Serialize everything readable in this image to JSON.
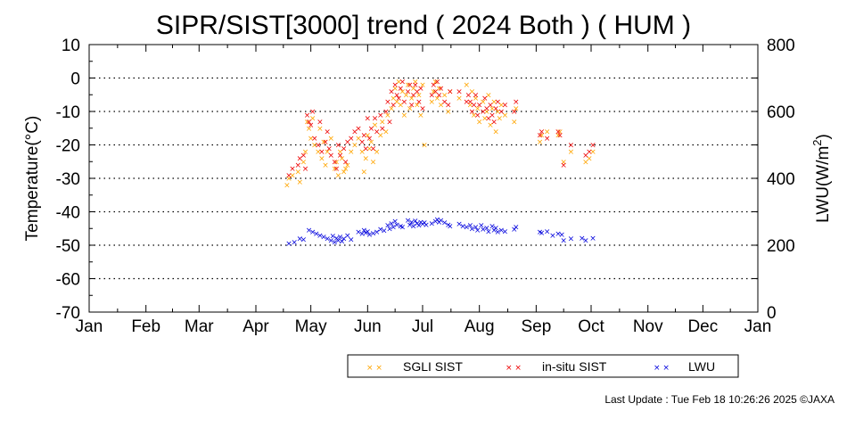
{
  "chart_data": {
    "type": "scatter",
    "title": "SIPR/SIST[3000] trend ( 2024 Both ) ( HUM )",
    "ylabel": "Temperature(°C)",
    "y2label_base": "LWU(W/m",
    "y2label_sup": "2",
    "y2label_end": ")",
    "ylim": [
      -70,
      10
    ],
    "y2lim": [
      0,
      800
    ],
    "xlim": [
      1,
      366
    ],
    "yticks": [
      10,
      0,
      -10,
      -20,
      -30,
      -40,
      -50,
      -60,
      -70
    ],
    "y2ticks": [
      800,
      600,
      400,
      200,
      0
    ],
    "xticks": [
      {
        "label": "Jan",
        "day": 1
      },
      {
        "label": "Feb",
        "day": 32
      },
      {
        "label": "Mar",
        "day": 61
      },
      {
        "label": "Apr",
        "day": 92
      },
      {
        "label": "May",
        "day": 122
      },
      {
        "label": "Jun",
        "day": 153
      },
      {
        "label": "Jul",
        "day": 183
      },
      {
        "label": "Aug",
        "day": 214
      },
      {
        "label": "Sep",
        "day": 245
      },
      {
        "label": "Oct",
        "day": 275
      },
      {
        "label": "Nov",
        "day": 306
      },
      {
        "label": "Dec",
        "day": 336
      },
      {
        "label": "Jan",
        "day": 366
      }
    ],
    "grid": "horizontal-dotted",
    "legend_position": "bottom",
    "series": [
      {
        "name": "SGLI SIST",
        "color": "#ffa500",
        "axis": "left",
        "points": [
          [
            109,
            -32
          ],
          [
            110,
            -30
          ],
          [
            112,
            -29
          ],
          [
            115,
            -28
          ],
          [
            116,
            -31
          ],
          [
            118,
            -25
          ],
          [
            119,
            -22
          ],
          [
            120,
            -13
          ],
          [
            121,
            -15
          ],
          [
            122,
            -18
          ],
          [
            123,
            -12
          ],
          [
            124,
            -20
          ],
          [
            126,
            -22
          ],
          [
            127,
            -15
          ],
          [
            128,
            -24
          ],
          [
            129,
            -19
          ],
          [
            130,
            -26
          ],
          [
            131,
            -22
          ],
          [
            133,
            -18
          ],
          [
            135,
            -27
          ],
          [
            136,
            -25
          ],
          [
            137,
            -29
          ],
          [
            138,
            -22
          ],
          [
            139,
            -24
          ],
          [
            140,
            -28
          ],
          [
            141,
            -27
          ],
          [
            142,
            -26
          ],
          [
            144,
            -22
          ],
          [
            146,
            -20
          ],
          [
            148,
            -18
          ],
          [
            150,
            -22
          ],
          [
            151,
            -28
          ],
          [
            152,
            -24
          ],
          [
            153,
            -17
          ],
          [
            154,
            -21
          ],
          [
            155,
            -19
          ],
          [
            156,
            -25
          ],
          [
            157,
            -14
          ],
          [
            158,
            -22
          ],
          [
            160,
            -17
          ],
          [
            161,
            -13
          ],
          [
            163,
            -16
          ],
          [
            164,
            -11
          ],
          [
            166,
            -9
          ],
          [
            167,
            -6
          ],
          [
            168,
            -3
          ],
          [
            169,
            -7
          ],
          [
            170,
            -1
          ],
          [
            171,
            -8
          ],
          [
            172,
            -4
          ],
          [
            173,
            -11
          ],
          [
            174,
            -5
          ],
          [
            175,
            -2
          ],
          [
            176,
            -9
          ],
          [
            177,
            -6
          ],
          [
            178,
            -3
          ],
          [
            179,
            -1
          ],
          [
            180,
            -8
          ],
          [
            181,
            -5
          ],
          [
            182,
            -11
          ],
          [
            183,
            -2
          ],
          [
            184,
            -20
          ],
          [
            188,
            -7
          ],
          [
            189,
            -4
          ],
          [
            190,
            -1
          ],
          [
            191,
            -6
          ],
          [
            192,
            -3
          ],
          [
            193,
            -8
          ],
          [
            195,
            -5
          ],
          [
            197,
            -10
          ],
          [
            198,
            -4
          ],
          [
            203,
            -6
          ],
          [
            207,
            -2
          ],
          [
            209,
            -8
          ],
          [
            210,
            -4
          ],
          [
            211,
            -11
          ],
          [
            212,
            -6
          ],
          [
            213,
            -9
          ],
          [
            214,
            -13
          ],
          [
            216,
            -7
          ],
          [
            217,
            -12
          ],
          [
            218,
            -10
          ],
          [
            219,
            -5
          ],
          [
            220,
            -14
          ],
          [
            221,
            -9
          ],
          [
            222,
            -7
          ],
          [
            223,
            -16
          ],
          [
            224,
            -10
          ],
          [
            225,
            -12
          ],
          [
            226,
            -8
          ],
          [
            228,
            -11
          ],
          [
            233,
            -13
          ],
          [
            234,
            -9
          ],
          [
            247,
            -19
          ],
          [
            248,
            -17
          ],
          [
            251,
            -16
          ],
          [
            257,
            -17
          ],
          [
            258,
            -16
          ],
          [
            260,
            -25
          ],
          [
            264,
            -22
          ],
          [
            272,
            -25
          ],
          [
            274,
            -24
          ],
          [
            276,
            -22
          ]
        ]
      },
      {
        "name": "in-situ SIST",
        "color": "#ee0000",
        "axis": "left",
        "points": [
          [
            110,
            -29
          ],
          [
            112,
            -27
          ],
          [
            115,
            -26
          ],
          [
            116,
            -24
          ],
          [
            118,
            -23
          ],
          [
            119,
            -27
          ],
          [
            120,
            -11
          ],
          [
            121,
            -13
          ],
          [
            122,
            -14
          ],
          [
            123,
            -10
          ],
          [
            124,
            -18
          ],
          [
            126,
            -20
          ],
          [
            127,
            -13
          ],
          [
            128,
            -22
          ],
          [
            130,
            -19
          ],
          [
            131,
            -16
          ],
          [
            132,
            -21
          ],
          [
            133,
            -23
          ],
          [
            135,
            -25
          ],
          [
            136,
            -27
          ],
          [
            137,
            -20
          ],
          [
            138,
            -23
          ],
          [
            140,
            -21
          ],
          [
            141,
            -25
          ],
          [
            142,
            -19
          ],
          [
            144,
            -18
          ],
          [
            146,
            -16
          ],
          [
            148,
            -15
          ],
          [
            150,
            -19
          ],
          [
            151,
            -17
          ],
          [
            152,
            -21
          ],
          [
            153,
            -12
          ],
          [
            154,
            -18
          ],
          [
            155,
            -15
          ],
          [
            156,
            -21
          ],
          [
            157,
            -12
          ],
          [
            158,
            -16
          ],
          [
            160,
            -11
          ],
          [
            161,
            -15
          ],
          [
            163,
            -10
          ],
          [
            164,
            -7
          ],
          [
            165,
            -13
          ],
          [
            166,
            -4
          ],
          [
            167,
            -8
          ],
          [
            168,
            -2
          ],
          [
            169,
            -5
          ],
          [
            170,
            -6
          ],
          [
            171,
            -3
          ],
          [
            172,
            -1
          ],
          [
            173,
            -7
          ],
          [
            175,
            -4
          ],
          [
            176,
            -2
          ],
          [
            177,
            -8
          ],
          [
            178,
            -5
          ],
          [
            179,
            -2
          ],
          [
            180,
            -4
          ],
          [
            181,
            -7
          ],
          [
            182,
            -3
          ],
          [
            183,
            -9
          ],
          [
            188,
            -5
          ],
          [
            189,
            -2
          ],
          [
            190,
            -4
          ],
          [
            191,
            -1
          ],
          [
            192,
            -5
          ],
          [
            193,
            -3
          ],
          [
            195,
            -7
          ],
          [
            197,
            -8
          ],
          [
            198,
            -4
          ],
          [
            203,
            -4
          ],
          [
            207,
            -7
          ],
          [
            208,
            -5
          ],
          [
            209,
            -7
          ],
          [
            210,
            -10
          ],
          [
            211,
            -8
          ],
          [
            212,
            -5
          ],
          [
            213,
            -11
          ],
          [
            214,
            -8
          ],
          [
            216,
            -10
          ],
          [
            217,
            -6
          ],
          [
            218,
            -9
          ],
          [
            219,
            -12
          ],
          [
            220,
            -8
          ],
          [
            221,
            -11
          ],
          [
            222,
            -13
          ],
          [
            223,
            -9
          ],
          [
            224,
            -7
          ],
          [
            226,
            -10
          ],
          [
            228,
            -8
          ],
          [
            233,
            -10
          ],
          [
            234,
            -7
          ],
          [
            247,
            -17
          ],
          [
            248,
            -16
          ],
          [
            251,
            -18
          ],
          [
            257,
            -16
          ],
          [
            258,
            -17
          ],
          [
            260,
            -26
          ],
          [
            264,
            -20
          ],
          [
            272,
            -23
          ],
          [
            274,
            -22
          ],
          [
            276,
            -20
          ]
        ]
      },
      {
        "name": "LWU",
        "color": "#0000dd",
        "axis": "right",
        "points": [
          [
            110,
            205
          ],
          [
            113,
            210
          ],
          [
            116,
            220
          ],
          [
            118,
            218
          ],
          [
            121,
            245
          ],
          [
            123,
            240
          ],
          [
            125,
            235
          ],
          [
            127,
            230
          ],
          [
            129,
            225
          ],
          [
            131,
            220
          ],
          [
            133,
            215
          ],
          [
            134,
            228
          ],
          [
            135,
            210
          ],
          [
            136,
            222
          ],
          [
            137,
            215
          ],
          [
            138,
            225
          ],
          [
            139,
            212
          ],
          [
            140,
            220
          ],
          [
            142,
            230
          ],
          [
            144,
            218
          ],
          [
            148,
            240
          ],
          [
            150,
            235
          ],
          [
            151,
            245
          ],
          [
            152,
            238
          ],
          [
            153,
            242
          ],
          [
            154,
            232
          ],
          [
            156,
            236
          ],
          [
            158,
            240
          ],
          [
            160,
            248
          ],
          [
            162,
            244
          ],
          [
            164,
            260
          ],
          [
            165,
            250
          ],
          [
            166,
            265
          ],
          [
            167,
            255
          ],
          [
            168,
            272
          ],
          [
            169,
            262
          ],
          [
            171,
            258
          ],
          [
            172,
            255
          ],
          [
            175,
            275
          ],
          [
            176,
            262
          ],
          [
            177,
            270
          ],
          [
            178,
            258
          ],
          [
            179,
            274
          ],
          [
            180,
            266
          ],
          [
            181,
            260
          ],
          [
            182,
            270
          ],
          [
            183,
            264
          ],
          [
            184,
            268
          ],
          [
            185,
            262
          ],
          [
            188,
            265
          ],
          [
            190,
            272
          ],
          [
            191,
            278
          ],
          [
            192,
            270
          ],
          [
            193,
            275
          ],
          [
            195,
            268
          ],
          [
            197,
            262
          ],
          [
            198,
            258
          ],
          [
            203,
            264
          ],
          [
            205,
            258
          ],
          [
            207,
            255
          ],
          [
            209,
            260
          ],
          [
            210,
            250
          ],
          [
            212,
            255
          ],
          [
            213,
            245
          ],
          [
            215,
            260
          ],
          [
            216,
            248
          ],
          [
            218,
            252
          ],
          [
            219,
            242
          ],
          [
            221,
            258
          ],
          [
            222,
            246
          ],
          [
            223,
            252
          ],
          [
            224,
            240
          ],
          [
            226,
            245
          ],
          [
            228,
            242
          ],
          [
            233,
            248
          ],
          [
            234,
            255
          ],
          [
            247,
            240
          ],
          [
            248,
            237
          ],
          [
            251,
            242
          ],
          [
            254,
            230
          ],
          [
            257,
            235
          ],
          [
            259,
            232
          ],
          [
            260,
            215
          ],
          [
            264,
            220
          ],
          [
            270,
            222
          ],
          [
            272,
            215
          ],
          [
            276,
            222
          ]
        ]
      }
    ]
  },
  "footer": {
    "last_update": "Last Update : Tue Feb 18 10:26:26 2025 ©JAXA"
  }
}
